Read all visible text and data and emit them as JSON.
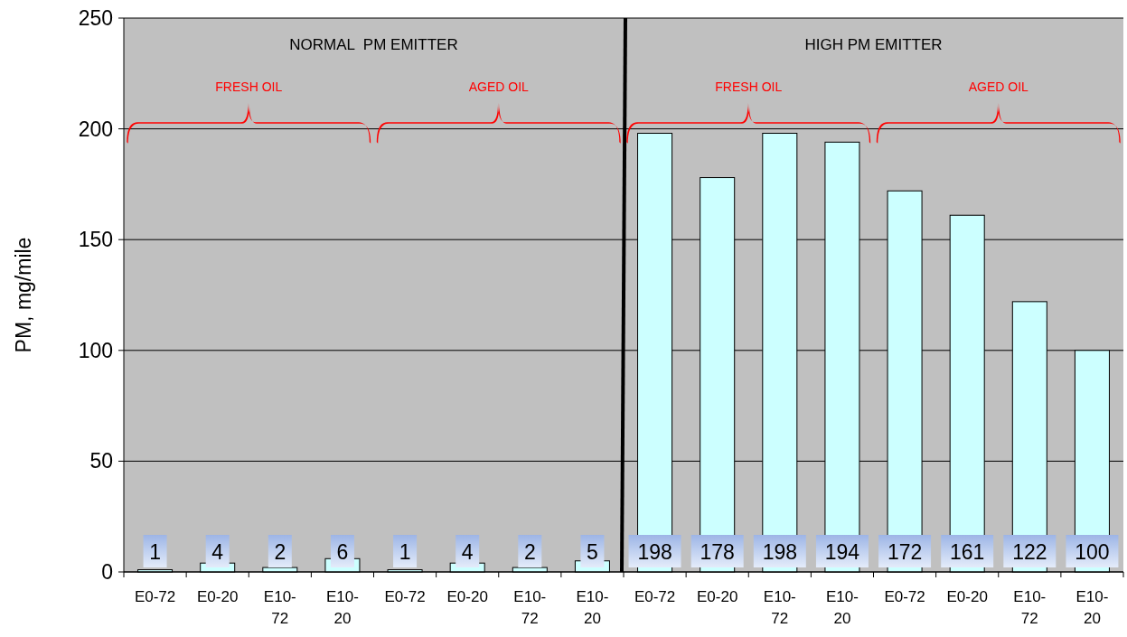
{
  "chart_data": {
    "type": "bar",
    "ylabel": "PM, mg/mile",
    "categories": [
      "E0-72",
      "E0-20",
      "E10-72",
      "E10-20",
      "E0-72",
      "E0-20",
      "E10-72",
      "E10-20",
      "E0-72",
      "E0-20",
      "E10-72",
      "E10-20",
      "E0-72",
      "E0-20",
      "E10-72",
      "E10-20"
    ],
    "values": [
      1,
      4,
      2,
      6,
      1,
      4,
      2,
      5,
      198,
      178,
      198,
      194,
      172,
      161,
      122,
      100
    ],
    "color": "#ccffff",
    "data_labels": true,
    "ylim": [
      0,
      250
    ],
    "yticks": [
      0,
      50,
      100,
      150,
      200,
      250
    ],
    "grid": "y",
    "annotations": [
      "NORMAL  PM EMITTER",
      "HIGH PM EMITTER",
      "FRESH OIL",
      "AGED OIL",
      "FRESH OIL",
      "AGED OIL"
    ]
  }
}
